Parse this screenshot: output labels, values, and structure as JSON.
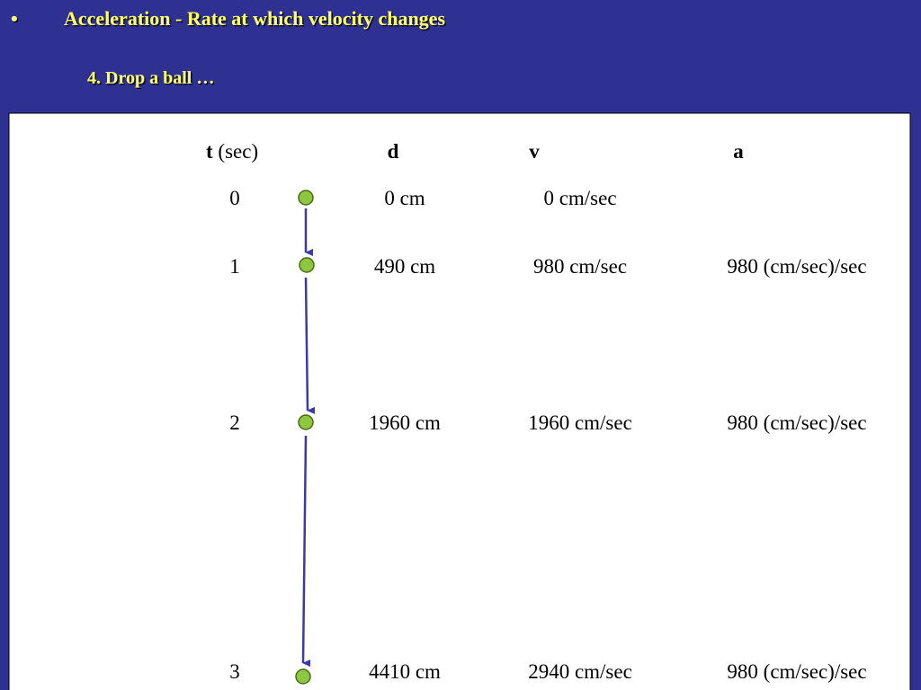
{
  "header": {
    "bullet": "•",
    "title": "Acceleration - Rate at which velocity changes",
    "subtitle": "4. Drop a ball …"
  },
  "table": {
    "columns": [
      {
        "symbol": "t",
        "unit": "(sec)"
      },
      {
        "symbol": "d"
      },
      {
        "symbol": "v"
      },
      {
        "symbol": "a"
      }
    ],
    "rows": [
      [
        "0",
        "0 cm",
        "0 cm/sec"
      ],
      [
        "1",
        "490 cm",
        "980 cm/sec",
        "980 (cm/sec)/sec"
      ],
      [
        "2",
        "1960 cm",
        "1960 cm/sec",
        "980 (cm/sec)/sec"
      ],
      [
        "3",
        "4410 cm",
        "2940 cm/sec",
        "980 (cm/sec)/sec"
      ]
    ]
  }
}
